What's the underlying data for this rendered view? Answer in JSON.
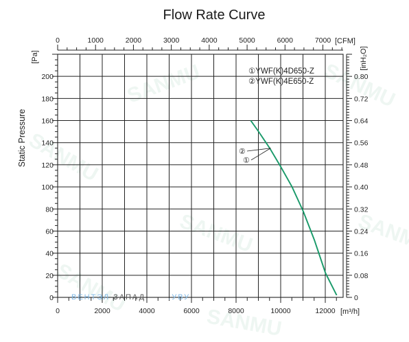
{
  "chart_data": {
    "type": "line",
    "title": "Flow Rate Curve",
    "ylabel": "Static Pressure",
    "y_unit": "[Pa]",
    "y2_unit": "[inH₂O]",
    "x_unit": "[m³/h]",
    "x2_unit": "[CFM]",
    "xlim": [
      0,
      12800
    ],
    "ylim": [
      0,
      220
    ],
    "x_ticks": [
      "0",
      "2000",
      "4000",
      "6000",
      "8000",
      "10000",
      "12000"
    ],
    "y_ticks": [
      "0",
      "20",
      "40",
      "60",
      "80",
      "100",
      "120",
      "140",
      "160",
      "180",
      "200"
    ],
    "x2_ticks": [
      "0",
      "1000",
      "2000",
      "3000",
      "4000",
      "5000",
      "6000",
      "7000"
    ],
    "y2_ticks": [
      "0",
      "0.08",
      "0.16",
      "0.24",
      "0.32",
      "0.40",
      "0.48",
      "0.56",
      "0.64",
      "0.72",
      "0.80"
    ],
    "grid": true,
    "legend_position": "top-right",
    "series": [
      {
        "name": "①YWF(K)4D650-Z",
        "marker": "①",
        "color": "#1a9a6a",
        "x": [
          8650,
          9000,
          9500,
          10000,
          10500,
          11000,
          11500,
          12000,
          12500
        ],
        "y": [
          160,
          150,
          135,
          118,
          100,
          78,
          52,
          22,
          2
        ]
      },
      {
        "name": "②YWF(K)4E650-Z",
        "marker": "②",
        "color": "#1a9a6a",
        "x": [
          8650,
          9000,
          9500,
          10000,
          10500,
          11000,
          11500,
          12000,
          12500
        ],
        "y": [
          160,
          150,
          135,
          118,
          100,
          78,
          52,
          22,
          2
        ]
      }
    ]
  },
  "watermark": {
    "part1": "ВЕНТЭЛ",
    "part2": "ЗАПАД",
    "part3": ".УВУ",
    "brand": "SANMU",
    "color1": "#7fb8e6",
    "color2": "#555555"
  }
}
